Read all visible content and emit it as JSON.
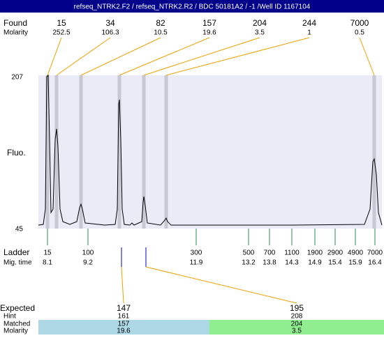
{
  "title": "refseq_NTRK2.F2 / refseq_NTRK2.R2 / BDC 50181A2 / -1 /Well ID 1167104",
  "found": {
    "label": "Found",
    "values": [
      15,
      34,
      82,
      157,
      204,
      244,
      7000
    ]
  },
  "molarity": {
    "label": "Molarity",
    "values": [
      252.5,
      106.3,
      10.5,
      19.6,
      3.5,
      1,
      0.5
    ]
  },
  "y_axis": {
    "label": "Fluo.",
    "max": 207,
    "min": 45
  },
  "ladder": {
    "label": "Ladder",
    "values": [
      15,
      100,
      300,
      500,
      700,
      1100,
      1900,
      2900,
      4900,
      7000
    ]
  },
  "mig_time": {
    "label": "Mig. time",
    "values": [
      8.1,
      9.2,
      11.9,
      13.2,
      13.8,
      14.3,
      14.9,
      15.4,
      15.9,
      16.4
    ]
  },
  "expected": {
    "label": "Expected",
    "values": [
      147,
      195
    ]
  },
  "hint": {
    "label": "Hint",
    "values": [
      161,
      208
    ]
  },
  "matched": {
    "label": "Matched",
    "values": [
      157,
      204
    ]
  },
  "matched_molarity": {
    "label": "Molarity",
    "values": [
      19.6,
      3.5
    ]
  }
}
